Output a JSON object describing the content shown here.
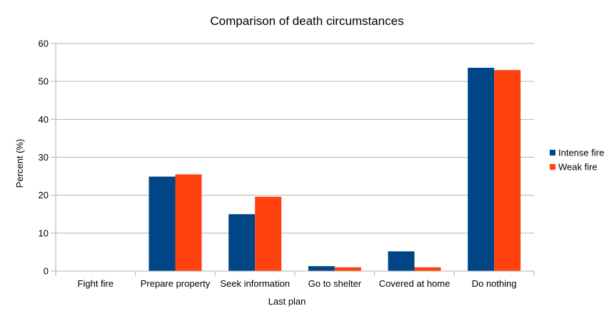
{
  "chart_data": {
    "type": "bar",
    "title": "Comparison of death circumstances",
    "xlabel": "Last plan",
    "ylabel": "Percent (%)",
    "ylim": [
      0,
      60
    ],
    "yticks": [
      0,
      10,
      20,
      30,
      40,
      50,
      60
    ],
    "grid": true,
    "legend_position": "right",
    "categories": [
      "Fight fire",
      "Prepare property",
      "Seek information",
      "Go to shelter",
      "Covered at home",
      "Do nothing"
    ],
    "series": [
      {
        "name": "Intense fire",
        "color": "#004586",
        "values": [
          0,
          24.9,
          15.0,
          1.3,
          5.2,
          53.6
        ]
      },
      {
        "name": "Weak fire",
        "color": "#ff420e",
        "values": [
          0,
          25.5,
          19.6,
          1.0,
          1.0,
          53.0
        ]
      }
    ]
  }
}
